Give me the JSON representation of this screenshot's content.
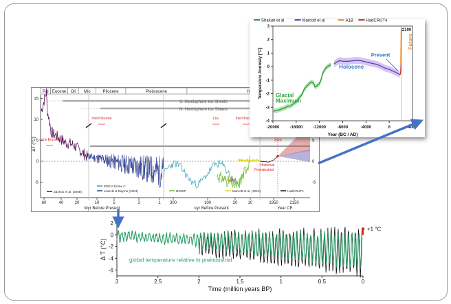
{
  "page": {
    "arrow_color": "#4472c4"
  },
  "main_chart": {
    "epochs": [
      "Pal",
      "Eocene",
      "Oli",
      "Mio",
      "Pliocene",
      "Pleistocene",
      "H"
    ],
    "ice_sheets": [
      "S. Hemisphere Ice Sheets",
      "N. Hemisphere Ice Sheets"
    ],
    "ylabel": "ΔT (°C)",
    "left_ticks": [
      15,
      10,
      5,
      0,
      -5
    ],
    "right_ticks": [
      5,
      0,
      -5
    ],
    "xaxis_segments": [
      {
        "label": "Myr Before Present",
        "ticks": [
          "60",
          "40",
          "20",
          "10",
          "5",
          "3",
          "1"
        ]
      },
      {
        "label": "kyr Before Present",
        "ticks": [
          "300",
          "100",
          "20",
          "10"
        ]
      },
      {
        "label": "Year CE",
        "ticks": [
          "1950",
          "2150"
        ]
      }
    ],
    "annotations": [
      "early Eocene",
      "mid-Pliocene",
      "LIG",
      "mid-Holocene",
      "LGM",
      "Historical",
      "Preindustrial",
      "2020",
      "2100"
    ],
    "legend": [
      {
        "label": "Zachos et al. (2008)",
        "color": "#5a1a5e"
      },
      {
        "label": "EPICA Dome C",
        "color": "#3ba7b8"
      },
      {
        "label": "Lisiecki & Raymo (2004)",
        "color": "#3d4c9a"
      },
      {
        "label": "NGRIP",
        "color": "#7fc241"
      },
      {
        "label": "Marcott et al. (2013)",
        "color": "#e3d82a"
      },
      {
        "label": "HadCRUT4",
        "color": "#222222"
      }
    ],
    "series_colors": {
      "zachos": "#5a1a5e",
      "lisiecki": "#3d4c9a",
      "epica": "#3ba7b8",
      "ngrip": "#7fc241",
      "marcott": "#e3d82a",
      "hadcrut": "#222222",
      "projection": "#c0504d",
      "projection_low": "#7b72c0",
      "annotation": "#e02020"
    }
  },
  "chart_data": [
    {
      "type": "line",
      "title": "",
      "xlabel": "Year (BC / AD)",
      "ylabel": "Temperature Anomaly [°C]",
      "xlim": [
        -20000,
        4000
      ],
      "ylim": [
        -4,
        3
      ],
      "x_ticks": [
        "-20000",
        "-16000",
        "-12000",
        "-8000",
        "-4000",
        "0",
        "4000"
      ],
      "y_ticks": [
        "-4",
        "-3",
        "-2",
        "-1",
        "0",
        "1",
        "2",
        "3"
      ],
      "legend": [
        {
          "label": "Shakun et al",
          "color": "#2e9e3a"
        },
        {
          "label": "Marcott et al",
          "color": "#6a3fb5"
        },
        {
          "label": "A1B",
          "color": "#f08c22"
        },
        {
          "label": "HadCRUT4",
          "color": "#c0392b"
        }
      ],
      "annotations": [
        {
          "text": "Glacial Maximum",
          "color": "#2ea83a"
        },
        {
          "text": "Holocene",
          "color": "#3a78c8"
        },
        {
          "text": "Present",
          "color": "#1e6fc0"
        },
        {
          "text": "Future",
          "color": "#f08c22"
        },
        {
          "text": "2100",
          "color": "#222222"
        }
      ],
      "series": [
        {
          "name": "Shakun et al",
          "x": [
            -20000,
            -19000,
            -18000,
            -17500,
            -17000,
            -16500,
            -16000,
            -15500,
            -15000,
            -14700,
            -14500,
            -14000,
            -13500,
            -13000,
            -12800,
            -12500,
            -12000,
            -11700,
            -11500,
            -11000,
            -10500,
            -10000
          ],
          "values": [
            -3.3,
            -3.2,
            -3.05,
            -2.95,
            -2.9,
            -2.75,
            -2.6,
            -2.3,
            -2.05,
            -1.75,
            -1.6,
            -1.35,
            -1.15,
            -1.2,
            -1.5,
            -1.45,
            -1.25,
            -0.95,
            -0.55,
            -0.15,
            0.05,
            0.15
          ]
        },
        {
          "name": "Marcott et al",
          "x": [
            -9500,
            -9000,
            -8500,
            -8000,
            -7000,
            -6000,
            -5000,
            -4000,
            -3000,
            -2000,
            -1500,
            -1000,
            -500,
            0,
            500,
            1000,
            1500,
            1800
          ],
          "values": [
            0.2,
            0.35,
            0.45,
            0.4,
            0.4,
            0.45,
            0.45,
            0.35,
            0.25,
            0.15,
            0.05,
            -0.05,
            -0.15,
            -0.2,
            -0.3,
            -0.4,
            -0.5,
            -0.6
          ]
        },
        {
          "name": "HadCRUT4",
          "x": [
            1850,
            1950,
            2000,
            2015
          ],
          "values": [
            -0.6,
            -0.45,
            -0.1,
            0.2
          ]
        },
        {
          "name": "A1B",
          "x": [
            2015,
            2050,
            2100
          ],
          "values": [
            0.2,
            1.4,
            2.9
          ]
        }
      ]
    },
    {
      "type": "line",
      "title": "",
      "annotation": "global temperature relative to preindustrial",
      "xlabel": "Time (million years BP)",
      "ylabel": "Δ T (°C)",
      "xlim": [
        3,
        0
      ],
      "ylim": [
        -7,
        2
      ],
      "x_ticks": [
        "3",
        "2.5",
        "2",
        "1.5",
        "1",
        "0.5",
        "0"
      ],
      "y_ticks": [
        "2",
        "0",
        "-2",
        "-4",
        "-6"
      ],
      "marker_label": "+1 °C",
      "series_colors": {
        "green": "#2e9e6a",
        "black": "#111111",
        "marker": "#e02020"
      }
    }
  ]
}
